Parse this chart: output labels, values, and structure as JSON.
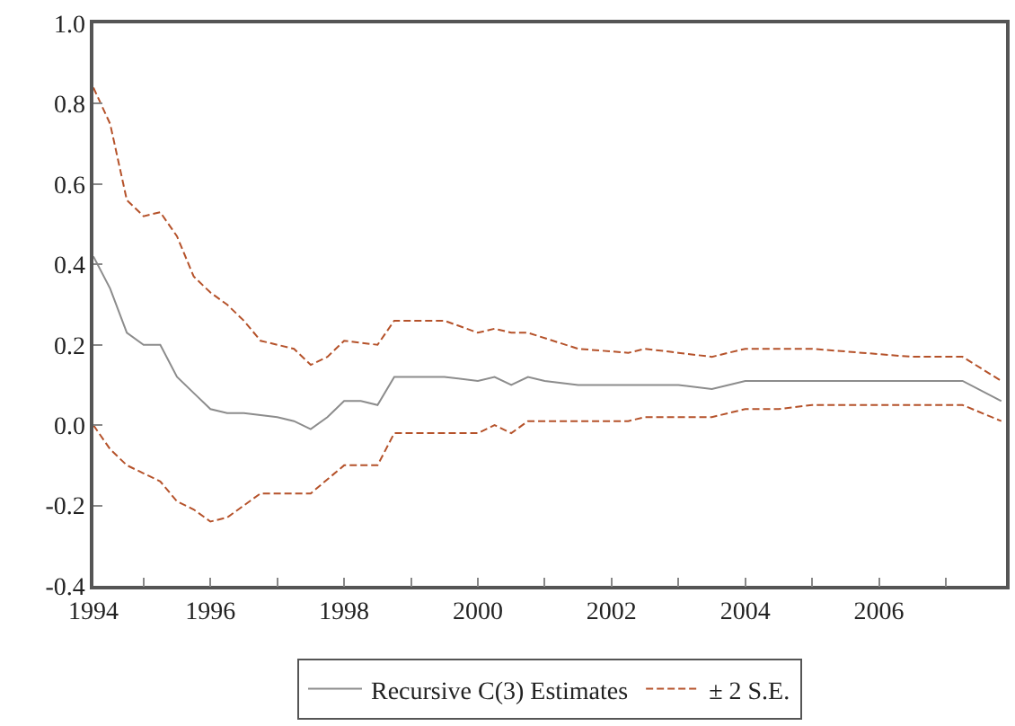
{
  "chart_data": {
    "type": "line",
    "legend": "bottom",
    "marker": "none",
    "xlim": [
      1994.25,
      2007.9
    ],
    "xticks": [
      {
        "value": 1994.25,
        "label": "1994"
      },
      {
        "value": 1995,
        "label": null
      },
      {
        "value": 1996,
        "label": "1996"
      },
      {
        "value": 1997,
        "label": null
      },
      {
        "value": 1998,
        "label": "1998"
      },
      {
        "value": 1999,
        "label": null
      },
      {
        "value": 2000,
        "label": "2000"
      },
      {
        "value": 2001,
        "label": null
      },
      {
        "value": 2002,
        "label": "2002"
      },
      {
        "value": 2003,
        "label": null
      },
      {
        "value": 2004,
        "label": "2004"
      },
      {
        "value": 2005,
        "label": null
      },
      {
        "value": 2006,
        "label": "2006"
      },
      {
        "value": 2007,
        "label": null
      }
    ],
    "ylim": [
      -0.4,
      1.0
    ],
    "yticks": [
      {
        "value": -0.4,
        "label": "-0.4"
      },
      {
        "value": -0.2,
        "label": "-0.2"
      },
      {
        "value": 0.0,
        "label": "0.0"
      },
      {
        "value": 0.2,
        "label": "0.2"
      },
      {
        "value": 0.4,
        "label": "0.4"
      },
      {
        "value": 0.6,
        "label": "0.6"
      },
      {
        "value": 0.8,
        "label": "0.8"
      },
      {
        "value": 1.0,
        "label": "1.0"
      }
    ],
    "series": [
      {
        "name": "Recursive C(3) Estimates",
        "color": "#8c8c8c",
        "line_style": "solid",
        "x": [
          1994.25,
          1994.5,
          1994.75,
          1995.0,
          1995.25,
          1995.5,
          1995.75,
          1996.0,
          1996.25,
          1996.5,
          1997.0,
          1997.25,
          1997.5,
          1997.75,
          1998.0,
          1998.25,
          1998.5,
          1998.75,
          1999.0,
          1999.5,
          2000.0,
          2000.25,
          2000.5,
          2000.75,
          2001.0,
          2001.5,
          2002.25,
          2002.5,
          2003.0,
          2003.5,
          2004.0,
          2004.5,
          2004.75,
          2005.75,
          2006.25,
          2006.5,
          2007.25,
          2007.83
        ],
        "values": [
          0.42,
          0.34,
          0.23,
          0.2,
          0.2,
          0.12,
          0.08,
          0.04,
          0.03,
          0.03,
          0.02,
          0.01,
          -0.01,
          0.02,
          0.06,
          0.06,
          0.05,
          0.12,
          0.12,
          0.12,
          0.11,
          0.12,
          0.1,
          0.12,
          0.11,
          0.1,
          0.1,
          0.1,
          0.1,
          0.09,
          0.11,
          0.11,
          0.11,
          0.11,
          0.11,
          0.11,
          0.11,
          0.06
        ]
      },
      {
        "name": "± 2 S.E.",
        "color": "#b5522a",
        "line_style": "dashed",
        "x": [
          1994.25,
          1994.5,
          1994.75,
          1995.0,
          1995.25,
          1995.5,
          1995.75,
          1996.0,
          1996.25,
          1996.5,
          1996.75,
          1997.0,
          1997.25,
          1997.5,
          1997.75,
          1998.0,
          1998.5,
          1998.75,
          1999.5,
          2000.0,
          2000.25,
          2000.5,
          2000.75,
          2001.5,
          2002.25,
          2002.5,
          2003.0,
          2003.5,
          2004.0,
          2005.0,
          2005.75,
          2006.5,
          2007.25,
          2007.83
        ],
        "values": [
          0.84,
          0.75,
          0.56,
          0.52,
          0.53,
          0.47,
          0.37,
          0.33,
          0.3,
          0.26,
          0.21,
          0.2,
          0.19,
          0.15,
          0.17,
          0.21,
          0.2,
          0.26,
          0.26,
          0.23,
          0.24,
          0.23,
          0.23,
          0.19,
          0.18,
          0.19,
          0.18,
          0.17,
          0.19,
          0.19,
          0.18,
          0.17,
          0.17,
          0.11
        ]
      },
      {
        "color": "#b5522a",
        "line_style": "dashed",
        "x": [
          1994.25,
          1994.5,
          1994.75,
          1995.0,
          1995.25,
          1995.5,
          1995.75,
          1996.0,
          1996.25,
          1996.5,
          1996.75,
          1997.0,
          1997.25,
          1997.5,
          1998.0,
          1998.5,
          1998.75,
          1999.5,
          2000.0,
          2000.25,
          2000.5,
          2000.75,
          2001.0,
          2001.5,
          2002.25,
          2002.5,
          2003.0,
          2003.5,
          2004.0,
          2004.5,
          2005.0,
          2005.75,
          2006.25,
          2006.5,
          2006.75,
          2007.25,
          2007.83
        ],
        "values": [
          0.0,
          -0.06,
          -0.1,
          -0.12,
          -0.14,
          -0.19,
          -0.21,
          -0.24,
          -0.23,
          -0.2,
          -0.17,
          -0.17,
          -0.17,
          -0.17,
          -0.1,
          -0.1,
          -0.02,
          -0.02,
          -0.02,
          0.0,
          -0.02,
          0.01,
          0.01,
          0.01,
          0.01,
          0.02,
          0.02,
          0.02,
          0.04,
          0.04,
          0.05,
          0.05,
          0.05,
          0.05,
          0.05,
          0.05,
          0.01
        ]
      }
    ]
  }
}
